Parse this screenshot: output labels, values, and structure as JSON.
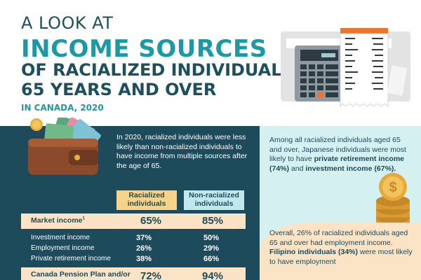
{
  "header": {
    "kicker": "A LOOK AT",
    "title_line1": "INCOME SOURCES",
    "title_line2": "OF RACIALIZED INDIVIDUALS",
    "title_line3": "65 YEARS AND OVER",
    "subtitle": "IN CANADA, 2020"
  },
  "intro": "In 2020, racialized individuals were less likely than non-racialized individuals to have income from multiple sources after the age of 65.",
  "table": {
    "col_racialized": "Racialized individuals",
    "col_non_racialized": "Non-racialized individuals",
    "market": {
      "label": "Market income",
      "footnote": "1",
      "racialized": "65%",
      "non_racialized": "85%"
    },
    "rows": [
      {
        "label": "Investment income",
        "racialized": "37%",
        "non_racialized": "50%"
      },
      {
        "label": "Employment income",
        "racialized": "26%",
        "non_racialized": "29%"
      },
      {
        "label": "Private retirement income",
        "racialized": "38%",
        "non_racialized": "66%"
      }
    ],
    "cpp": {
      "label": "Canada Pension Plan and/or",
      "racialized": "72%",
      "non_racialized": "94%"
    }
  },
  "right": {
    "text1_a": "Among all racialized individuals aged 65 and over, Japanese individuals were most likely to have ",
    "text1_b": "private retirement income (74%)",
    "text1_c": " and ",
    "text1_d": "investment income (67%).",
    "text2_a": "Overall, 26% of racialized individuals aged 65 and over had employment income. ",
    "text2_b": "Filipino individuals (34%)",
    "text2_c": " were most likely to have employment"
  },
  "colors": {
    "dark_teal": "#1d4b5c",
    "teal": "#1b9aa6",
    "light_blue": "#d4f0f1",
    "peach": "#fbe3c5",
    "yellow": "#f5d48a"
  },
  "icons": [
    "calculator-icon",
    "receipt-icon",
    "wallet-icon",
    "coins-icon"
  ]
}
